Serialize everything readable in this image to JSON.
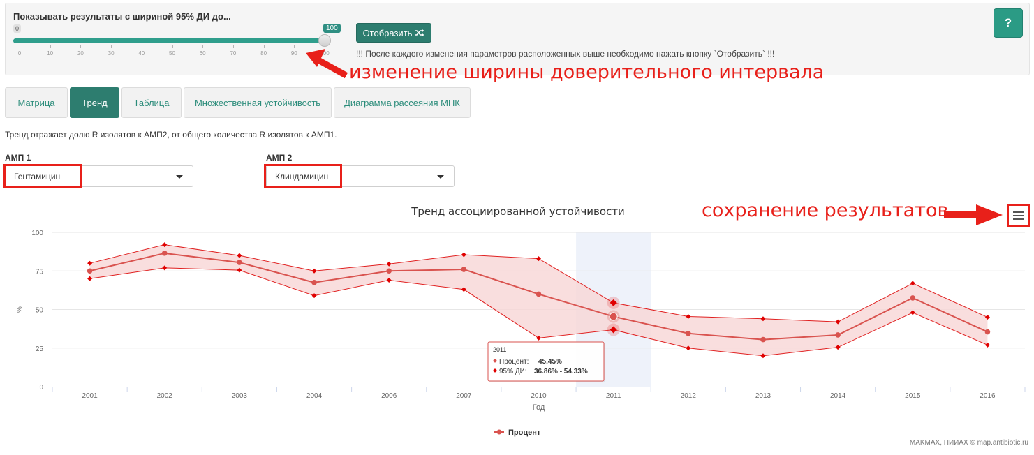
{
  "controls": {
    "slider_title": "Показывать результаты с шириной 95% ДИ до...",
    "slider_min_badge": "0",
    "slider_max_badge": "100",
    "slider_value": 100,
    "slider_ticks": [
      "0",
      "10",
      "20",
      "30",
      "40",
      "50",
      "60",
      "70",
      "80",
      "90",
      "100"
    ],
    "show_button_label": "Отобразить",
    "show_button_icon": "shuffle-icon",
    "notice": "!!! После каждого изменения параметров расположенных выше необходимо нажать кнопку `Отобразить` !!!",
    "help_label": "?"
  },
  "annotations": {
    "ci_width": "изменение ширины доверительного интервала",
    "save_results": "сохранение результатов",
    "color": "#e8201a"
  },
  "tabs": [
    {
      "label": "Матрица",
      "active": false
    },
    {
      "label": "Тренд",
      "active": true
    },
    {
      "label": "Таблица",
      "active": false
    },
    {
      "label": "Множественная устойчивость",
      "active": false
    },
    {
      "label": "Диаграмма рассеяния МПК",
      "active": false
    }
  ],
  "description": "Тренд отражает долю R изолятов к АМП2, от общего количества R изолятов к АМП1.",
  "selectors": {
    "amp1": {
      "label": "АМП 1",
      "value": "Гентамицин"
    },
    "amp2": {
      "label": "АМП 2",
      "value": "Клиндамицин"
    }
  },
  "chart_data": {
    "type": "line",
    "title": "Тренд ассоциированной устойчивости",
    "xlabel": "Год",
    "ylabel": "%",
    "categories": [
      "2001",
      "2002",
      "2003",
      "2004",
      "2006",
      "2007",
      "2010",
      "2011",
      "2012",
      "2013",
      "2014",
      "2015",
      "2016"
    ],
    "ylim": [
      0,
      100
    ],
    "yticks": [
      0,
      25,
      50,
      75,
      100
    ],
    "series": [
      {
        "name": "Процент",
        "color": "#d9534f",
        "values": [
          75,
          86.5,
          80.5,
          67.5,
          75,
          76,
          60,
          45.45,
          34.5,
          30.5,
          33.5,
          57.5,
          35.5
        ]
      }
    ],
    "ci_band": {
      "lower": [
        70,
        77,
        75.5,
        59,
        69,
        63,
        31.5,
        36.86,
        25,
        20,
        25.5,
        48,
        27
      ],
      "upper": [
        80,
        92,
        85,
        75,
        79.5,
        85.5,
        83,
        54.33,
        45.5,
        44,
        42,
        67,
        45
      ],
      "fill": "#f7d6d6",
      "line_color": "#e02020"
    },
    "highlight_category": "2011",
    "tooltip": {
      "category": "2011",
      "label_value": "Процент:",
      "value_text": "45.45%",
      "label_ci": "95% ДИ:",
      "ci_text": "36.86% - 54.33%"
    },
    "legend": {
      "position": "bottom-center",
      "items": [
        "Процент"
      ]
    },
    "grid": true
  },
  "credits": "MAKMAX, НИИАХ © map.antibiotic.ru"
}
